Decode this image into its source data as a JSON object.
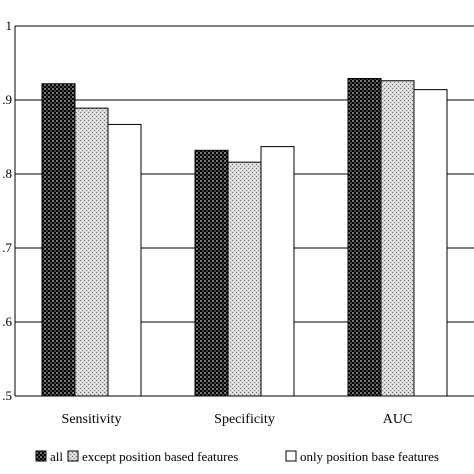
{
  "chart_data": {
    "type": "bar",
    "categories": [
      "Sensitivity",
      "Specificity",
      "AUC"
    ],
    "series": [
      {
        "name": "all",
        "values": [
          0.922,
          0.832,
          0.929
        ],
        "pattern": "dark-grid"
      },
      {
        "name": "except position based features",
        "values": [
          0.889,
          0.816,
          0.926
        ],
        "pattern": "light-dots"
      },
      {
        "name": "only position base features",
        "values": [
          0.867,
          0.837,
          0.914
        ],
        "pattern": "white"
      }
    ],
    "ylim": [
      0.5,
      1.0
    ],
    "yticks": [
      0.5,
      0.6,
      0.7,
      0.8,
      0.9,
      1.0
    ],
    "ytick_labels": [
      ".5",
      ".6",
      ".7",
      ".8",
      ".9",
      "1"
    ],
    "grid": true,
    "legend_position": "bottom",
    "title": "",
    "xlabel": "",
    "ylabel": ""
  }
}
